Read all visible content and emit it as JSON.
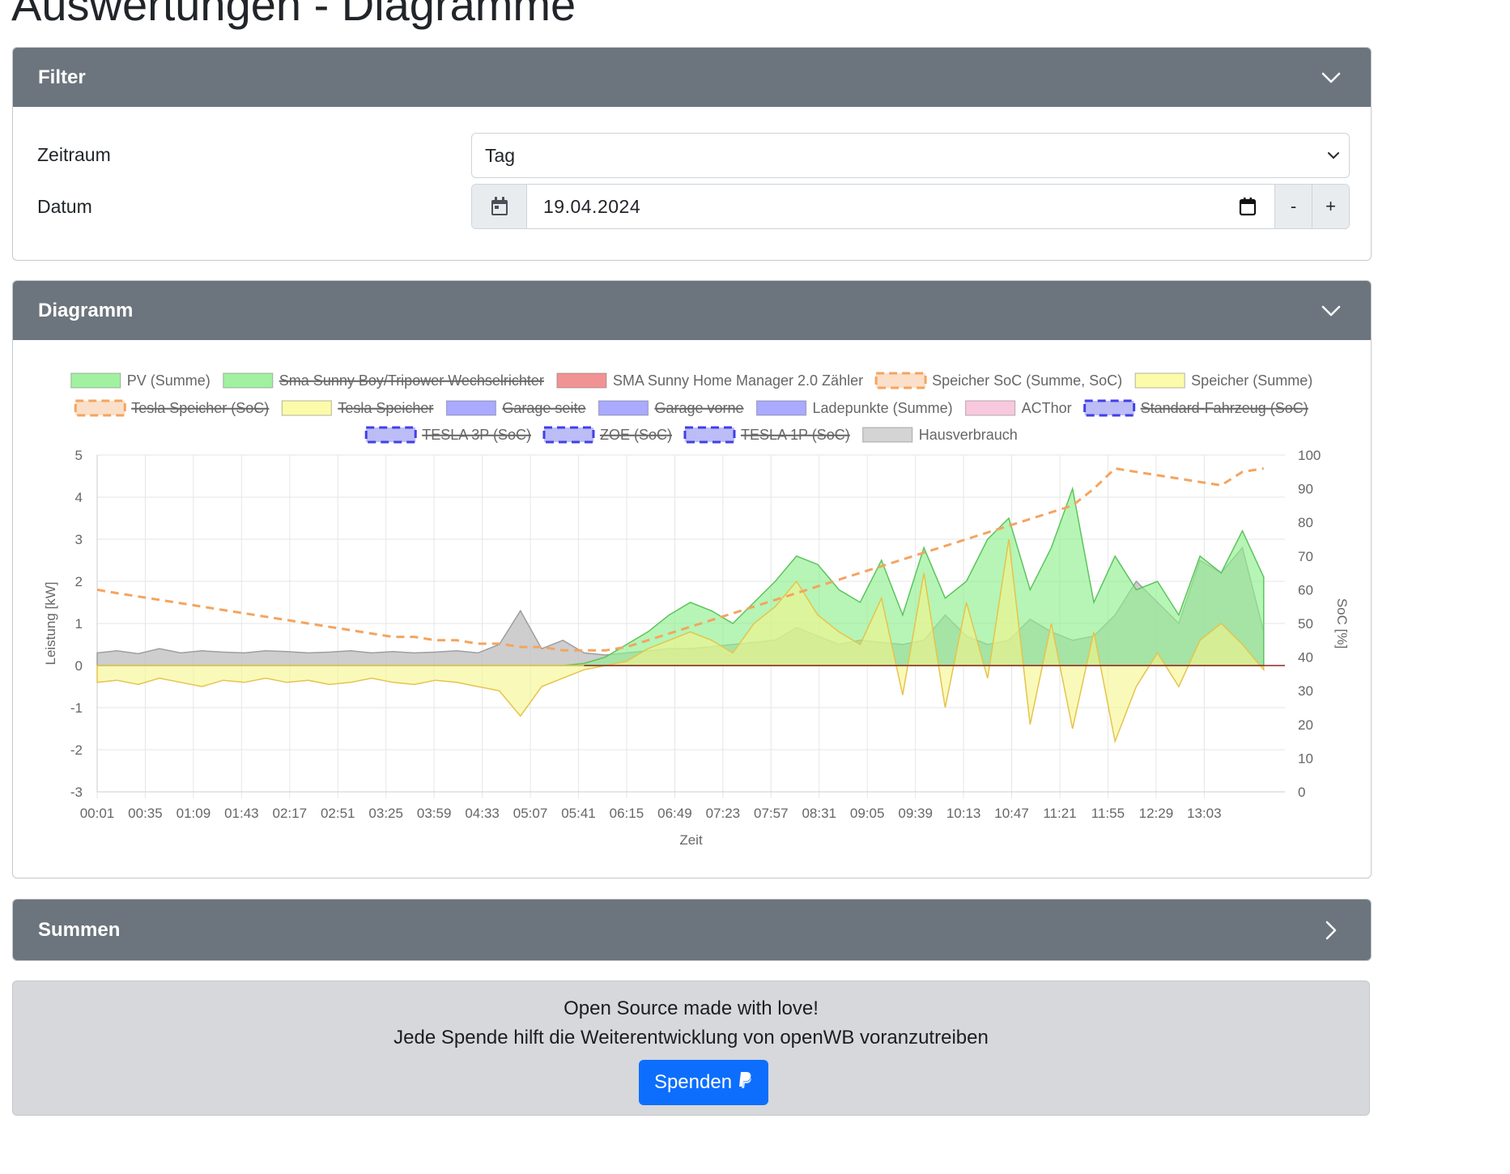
{
  "page": {
    "title": "Auswertungen - Diagramme"
  },
  "filter": {
    "header": "Filter",
    "zeitraum_label": "Zeitraum",
    "zeitraum_value": "Tag",
    "datum_label": "Datum",
    "datum_value": "19.04.2024",
    "minus_label": "-",
    "plus_label": "+"
  },
  "diagramm": {
    "header": "Diagramm"
  },
  "summen": {
    "header": "Summen"
  },
  "footer": {
    "line1": "Open Source made with love!",
    "line2": "Jede Spende hilft die Weiterentwicklung von openWB voranzutreiben",
    "donate_label": "Spenden"
  },
  "icons": {
    "chevron_down": "chevron-down-icon",
    "chevron_right": "chevron-right-icon",
    "calendar": "calendar-icon",
    "paypal": "paypal-icon"
  },
  "chart_data": {
    "type": "area",
    "xlabel": "Zeit",
    "ylabel": "Leistung [kW]",
    "y2label": "SoC [%]",
    "ylim": [
      -3,
      5
    ],
    "y2lim": [
      0,
      100
    ],
    "yticks": [
      -3,
      -2,
      -1,
      0,
      1,
      2,
      3,
      4,
      5
    ],
    "y2ticks": [
      0,
      10,
      20,
      30,
      40,
      50,
      60,
      70,
      80,
      90,
      100
    ],
    "xticks": [
      "00:01",
      "00:35",
      "01:09",
      "01:43",
      "02:17",
      "02:51",
      "03:25",
      "03:59",
      "04:33",
      "05:07",
      "05:41",
      "06:15",
      "06:49",
      "07:23",
      "07:57",
      "08:31",
      "09:05",
      "09:39",
      "10:13",
      "10:47",
      "11:21",
      "11:55",
      "12:29",
      "13:03"
    ],
    "grid": true,
    "legend_position": "top",
    "legend": [
      {
        "name": "PV (Summe)",
        "color": "#90ee90",
        "style": "solid",
        "hidden": false
      },
      {
        "name": "Sma Sunny Boy/Tripower Wechselrichter",
        "color": "#90ee90",
        "style": "solid",
        "hidden": true
      },
      {
        "name": "SMA Sunny Home Manager 2.0 Zähler",
        "color": "#f08080",
        "style": "solid",
        "hidden": false
      },
      {
        "name": "Speicher SoC (Summe, SoC)",
        "color": "#f4a460",
        "style": "dashed",
        "hidden": false
      },
      {
        "name": "Speicher (Summe)",
        "color": "#fafa9a",
        "style": "solid",
        "hidden": false
      },
      {
        "name": "Tesla Speicher (SoC)",
        "color": "#f4a460",
        "style": "dashed",
        "hidden": true
      },
      {
        "name": "Tesla Speicher",
        "color": "#fafa9a",
        "style": "solid",
        "hidden": true
      },
      {
        "name": "Garage seite",
        "color": "#9b9bff",
        "style": "solid",
        "hidden": true
      },
      {
        "name": "Garage vorne",
        "color": "#9b9bff",
        "style": "solid",
        "hidden": true
      },
      {
        "name": "Ladepunkte (Summe)",
        "color": "#9b9bff",
        "style": "solid",
        "hidden": false
      },
      {
        "name": "ACThor",
        "color": "#f7c0d8",
        "style": "solid",
        "hidden": false
      },
      {
        "name": "Standard-Fahrzeug (SoC)",
        "color": "#4040e8",
        "style": "dashed",
        "hidden": true
      },
      {
        "name": "TESLA 3P (SoC)",
        "color": "#4040e8",
        "style": "dashed",
        "hidden": true
      },
      {
        "name": "ZOE (SoC)",
        "color": "#4040e8",
        "style": "dashed",
        "hidden": true
      },
      {
        "name": "TESLA 1P (SoC)",
        "color": "#4040e8",
        "style": "dashed",
        "hidden": true
      },
      {
        "name": "Hausverbrauch",
        "color": "#cccccc",
        "style": "solid",
        "hidden": false
      }
    ],
    "x_minutes": [
      1,
      15,
      30,
      45,
      60,
      75,
      90,
      105,
      120,
      135,
      150,
      165,
      180,
      195,
      210,
      225,
      240,
      255,
      270,
      285,
      300,
      315,
      330,
      345,
      360,
      375,
      390,
      405,
      420,
      435,
      450,
      465,
      480,
      495,
      510,
      525,
      540,
      555,
      570,
      585,
      600,
      615,
      630,
      645,
      660,
      675,
      690,
      705,
      720,
      735,
      750,
      765,
      780,
      795,
      810,
      825
    ],
    "series": [
      {
        "name": "Hausverbrauch",
        "values": [
          0.3,
          0.35,
          0.28,
          0.4,
          0.3,
          0.35,
          0.32,
          0.3,
          0.35,
          0.33,
          0.3,
          0.32,
          0.35,
          0.3,
          0.33,
          0.3,
          0.32,
          0.35,
          0.3,
          0.5,
          1.3,
          0.4,
          0.6,
          0.3,
          0.25,
          0.3,
          0.35,
          0.4,
          0.4,
          0.45,
          0.5,
          0.55,
          0.6,
          0.9,
          0.7,
          0.5,
          0.6,
          0.55,
          0.5,
          0.6,
          1.2,
          0.7,
          0.5,
          0.6,
          1.1,
          0.8,
          0.6,
          0.7,
          1.2,
          2.0,
          1.5,
          1.0,
          2.5,
          2.2,
          2.8,
          0.8
        ]
      },
      {
        "name": "PV (Summe)",
        "values": [
          0,
          0,
          0,
          0,
          0,
          0,
          0,
          0,
          0,
          0,
          0,
          0,
          0,
          0,
          0,
          0,
          0,
          0,
          0,
          0,
          0,
          0,
          0,
          0.05,
          0.2,
          0.5,
          0.8,
          1.2,
          1.5,
          1.3,
          1.0,
          1.5,
          2.0,
          2.6,
          2.4,
          1.8,
          1.5,
          2.5,
          1.2,
          2.8,
          1.6,
          2.0,
          3.0,
          3.5,
          1.8,
          2.8,
          4.2,
          1.5,
          2.6,
          1.8,
          2.0,
          1.2,
          2.6,
          2.2,
          3.2,
          2.1
        ]
      },
      {
        "name": "Speicher (Summe)",
        "values": [
          -0.4,
          -0.35,
          -0.45,
          -0.3,
          -0.4,
          -0.5,
          -0.35,
          -0.4,
          -0.3,
          -0.4,
          -0.35,
          -0.45,
          -0.4,
          -0.3,
          -0.4,
          -0.45,
          -0.35,
          -0.4,
          -0.5,
          -0.6,
          -1.2,
          -0.5,
          -0.3,
          -0.1,
          0,
          0.1,
          0.4,
          0.6,
          0.8,
          0.6,
          0.3,
          1.0,
          1.4,
          2.0,
          1.2,
          0.8,
          0.5,
          1.6,
          -0.7,
          2.2,
          -1.0,
          1.5,
          -0.3,
          3.0,
          -1.4,
          1.0,
          -1.5,
          0.8,
          -1.8,
          -0.5,
          0.3,
          -0.5,
          0.6,
          1.0,
          0.5,
          -0.1
        ]
      },
      {
        "name": "Speicher SoC (Summe, SoC)",
        "values": [
          60,
          59,
          58,
          57,
          56,
          55,
          54,
          53,
          52,
          51,
          50,
          49,
          48,
          47,
          46,
          46,
          45,
          45,
          44,
          44,
          43,
          43,
          42,
          42,
          42,
          43,
          45,
          47,
          49,
          51,
          53,
          55,
          57,
          59,
          61,
          63,
          65,
          67,
          69,
          71,
          73,
          75,
          77,
          79,
          81,
          83,
          85,
          90,
          96,
          95,
          94,
          93,
          92,
          91,
          95,
          96
        ]
      }
    ]
  }
}
